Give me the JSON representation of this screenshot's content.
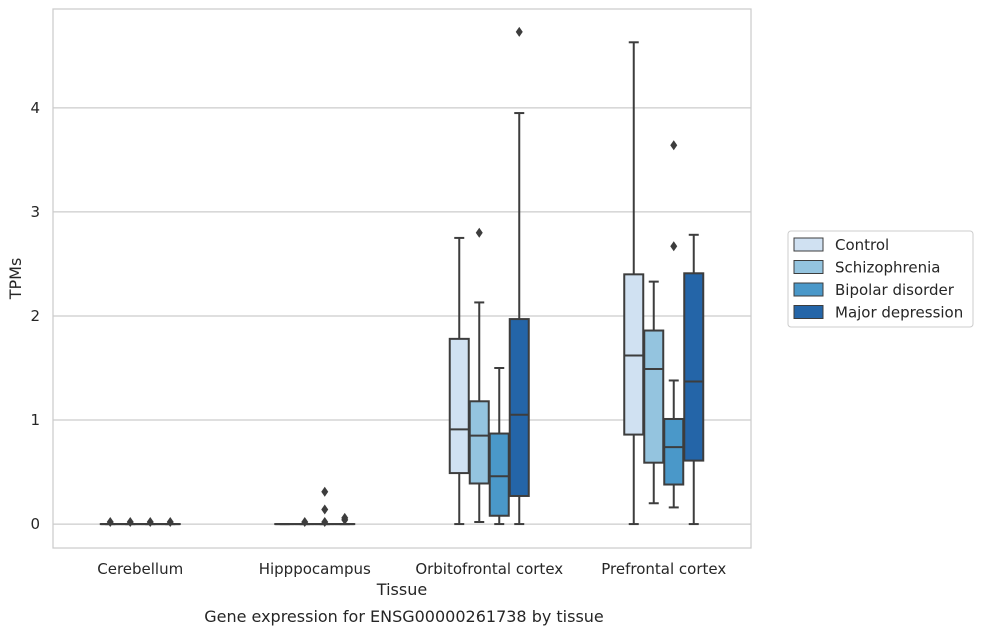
{
  "chart_data": {
    "type": "box",
    "caption": "Gene expression for ENSG00000261738 by tissue",
    "xlabel": "Tissue",
    "ylabel": "TPMs",
    "categories": [
      "Cerebellum",
      "Hipppocampus",
      "Orbitofrontal cortex",
      "Prefrontal cortex"
    ],
    "ylim": [
      -0.23,
      4.95
    ],
    "yticks": [
      0,
      1,
      2,
      3,
      4
    ],
    "grid": "horizontal",
    "legend_position": "right",
    "series": [
      {
        "name": "Control",
        "color": "#d0e1f2",
        "boxes": [
          {
            "q1": 0,
            "median": 0,
            "q3": 0,
            "whislo": 0,
            "whishi": 0,
            "fliers": [
              0.02
            ]
          },
          {
            "q1": 0,
            "median": 0,
            "q3": 0,
            "whislo": 0,
            "whishi": 0,
            "fliers": []
          },
          {
            "q1": 0.49,
            "median": 0.91,
            "q3": 1.78,
            "whislo": 0,
            "whishi": 2.75,
            "fliers": []
          },
          {
            "q1": 0.86,
            "median": 1.62,
            "q3": 2.4,
            "whislo": 0,
            "whishi": 4.63,
            "fliers": []
          }
        ]
      },
      {
        "name": "Schizophrenia",
        "color": "#94c4df",
        "boxes": [
          {
            "q1": 0,
            "median": 0,
            "q3": 0,
            "whislo": 0,
            "whishi": 0,
            "fliers": [
              0.02
            ]
          },
          {
            "q1": 0,
            "median": 0,
            "q3": 0,
            "whislo": 0,
            "whishi": 0,
            "fliers": [
              0.02
            ]
          },
          {
            "q1": 0.39,
            "median": 0.85,
            "q3": 1.18,
            "whislo": 0.02,
            "whishi": 2.13,
            "fliers": [
              2.8
            ]
          },
          {
            "q1": 0.59,
            "median": 1.49,
            "q3": 1.86,
            "whislo": 0.2,
            "whishi": 2.33,
            "fliers": []
          }
        ]
      },
      {
        "name": "Bipolar disorder",
        "color": "#4a98c9",
        "boxes": [
          {
            "q1": 0,
            "median": 0,
            "q3": 0,
            "whislo": 0,
            "whishi": 0,
            "fliers": [
              0.02
            ]
          },
          {
            "q1": 0,
            "median": 0,
            "q3": 0,
            "whislo": 0,
            "whishi": 0,
            "fliers": [
              0.02,
              0.14,
              0.31
            ]
          },
          {
            "q1": 0.08,
            "median": 0.46,
            "q3": 0.87,
            "whislo": 0,
            "whishi": 1.5,
            "fliers": []
          },
          {
            "q1": 0.38,
            "median": 0.74,
            "q3": 1.01,
            "whislo": 0.16,
            "whishi": 1.38,
            "fliers": [
              2.67,
              3.64
            ]
          }
        ]
      },
      {
        "name": "Major depression",
        "color": "#2465a8",
        "boxes": [
          {
            "q1": 0,
            "median": 0,
            "q3": 0,
            "whislo": 0,
            "whishi": 0,
            "fliers": [
              0.02
            ]
          },
          {
            "q1": 0,
            "median": 0,
            "q3": 0,
            "whislo": 0,
            "whishi": 0,
            "fliers": [
              0.04,
              0.06
            ]
          },
          {
            "q1": 0.27,
            "median": 1.05,
            "q3": 1.97,
            "whislo": 0,
            "whishi": 3.95,
            "fliers": [
              4.73
            ]
          },
          {
            "q1": 0.61,
            "median": 1.37,
            "q3": 2.41,
            "whislo": 0,
            "whishi": 2.78,
            "fliers": []
          }
        ]
      }
    ]
  }
}
